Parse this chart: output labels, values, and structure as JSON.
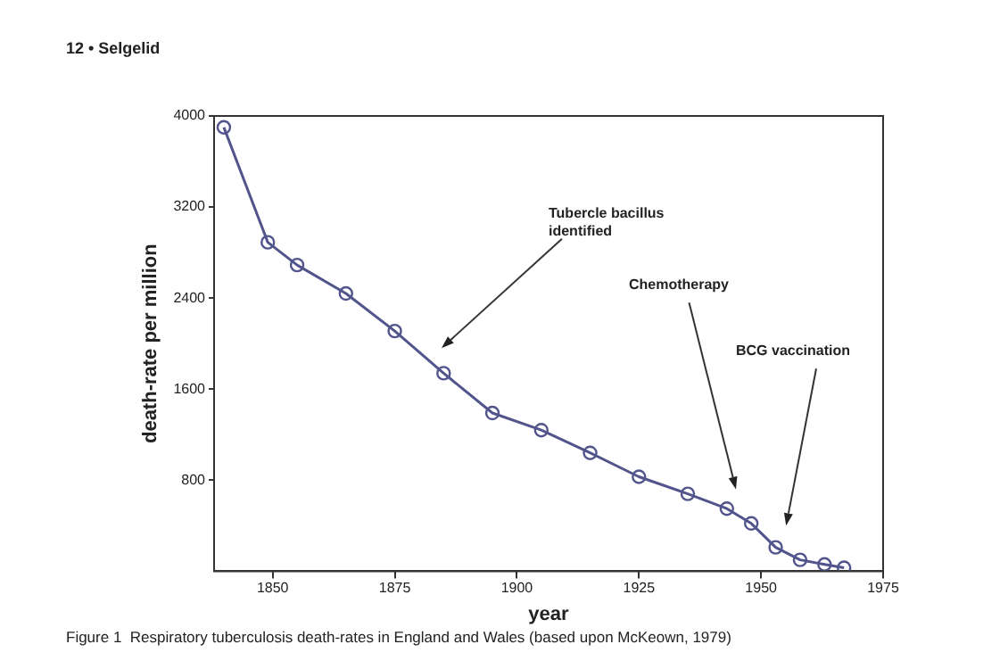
{
  "chart_data": {
    "type": "line",
    "xlabel": "year",
    "ylabel": "death-rate per million",
    "x": [
      1840,
      1849,
      1855,
      1865,
      1875,
      1885,
      1895,
      1905,
      1915,
      1925,
      1935,
      1943,
      1948,
      1953,
      1958,
      1963,
      1967
    ],
    "series": [
      {
        "color": "#51558c",
        "values": [
          3900,
          2890,
          2690,
          2440,
          2110,
          1740,
          1390,
          1240,
          1040,
          830,
          680,
          550,
          420,
          210,
          100,
          60,
          30
        ]
      }
    ],
    "xlim": [
      1838,
      1975
    ],
    "xticks": [
      1850,
      1875,
      1900,
      1925,
      1950,
      1975
    ],
    "ylim": [
      0,
      4000
    ],
    "yticks": [
      800,
      1600,
      2400,
      3200,
      4000
    ],
    "marker": "circle",
    "line_style": "solid",
    "grid": false,
    "legend": false,
    "annotations": [
      "12 • Selgelid",
      "Tubercle bacillus\nidentified",
      "Chemotherapy",
      "BCG vaccination",
      "Figure 1  Respiratory tuberculosis death-rates in England and Wales (based upon McKeown, 1979)"
    ]
  }
}
